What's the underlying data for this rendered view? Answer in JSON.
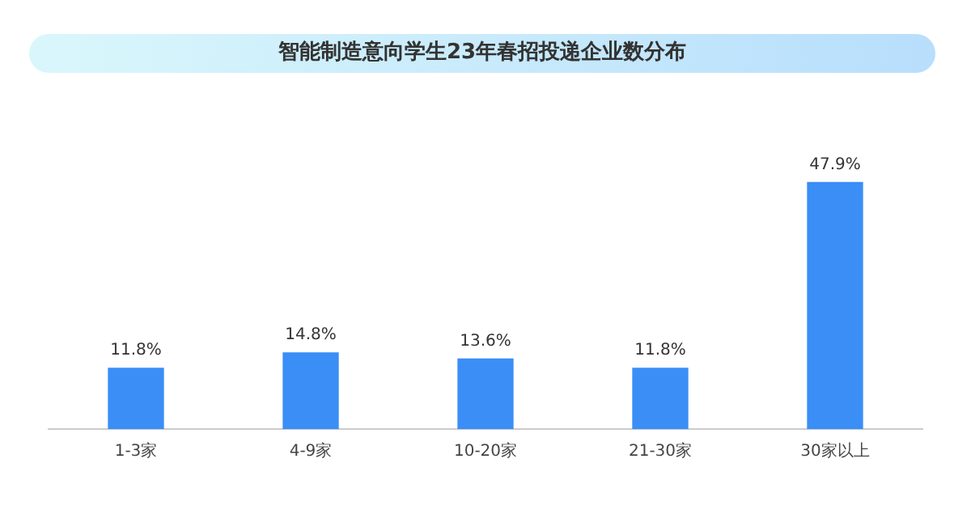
{
  "chart_data": {
    "type": "bar",
    "title": "智能制造意向学生23年春招投递企业数分布",
    "categories": [
      "1-3家",
      "4-9家",
      "10-20家",
      "21-30家",
      "30家以上"
    ],
    "values": [
      11.8,
      14.8,
      13.6,
      11.8,
      47.9
    ],
    "value_labels": [
      "11.8%",
      "14.8%",
      "13.6%",
      "11.8%",
      "47.9%"
    ],
    "color": "#3a8ef6",
    "grid": false,
    "legend": false
  }
}
